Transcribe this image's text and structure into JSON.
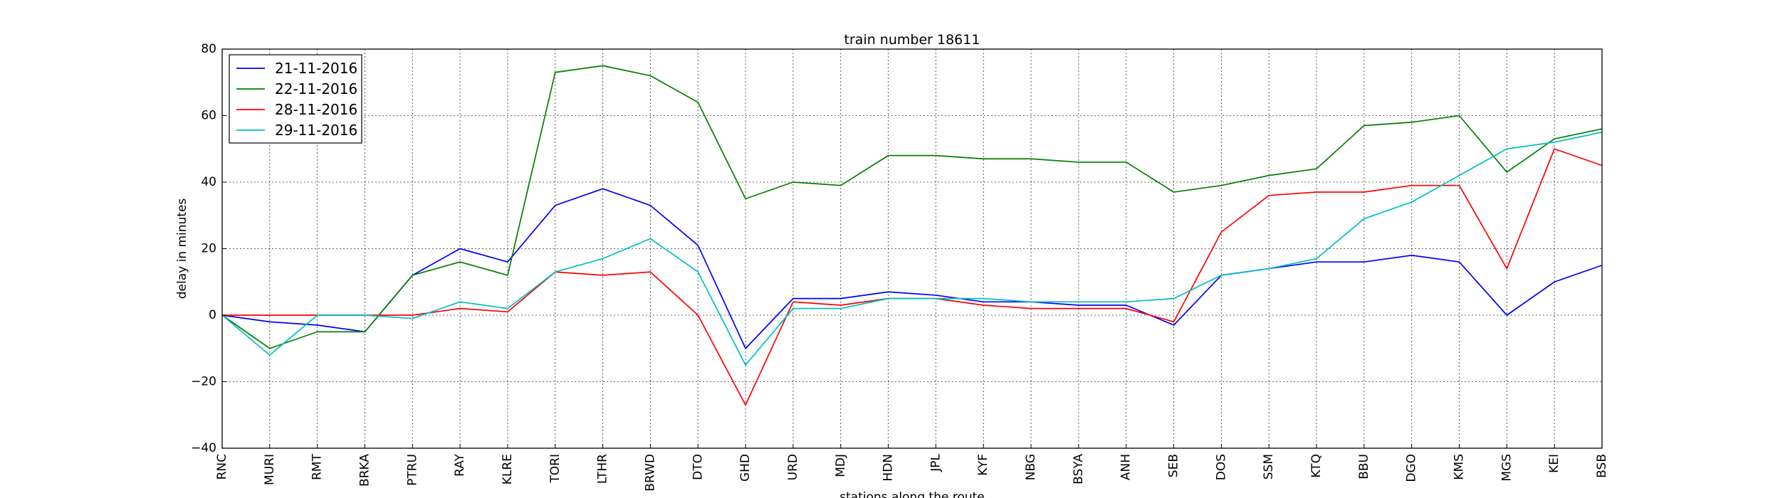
{
  "chart_data": {
    "type": "line",
    "title": "train number 18611",
    "xlabel": "stations along the route",
    "ylabel": "delay in minutes",
    "ylim": [
      -40,
      80
    ],
    "yticks": [
      -40,
      -20,
      0,
      20,
      40,
      60,
      80
    ],
    "grid": true,
    "legend_position": "top-left",
    "categories": [
      "RNC",
      "MURI",
      "RMT",
      "BRKA",
      "PTRU",
      "RAY",
      "KLRE",
      "TORI",
      "LTHR",
      "BRWD",
      "DTO",
      "GHD",
      "URD",
      "MDJ",
      "HDN",
      "JPL",
      "KYF",
      "NBG",
      "BSYA",
      "ANH",
      "SEB",
      "DOS",
      "SSM",
      "KTQ",
      "BBU",
      "DGO",
      "KMS",
      "MGS",
      "KEI",
      "BSB"
    ],
    "series": [
      {
        "name": "21-11-2016",
        "color": "#0000ff",
        "values": [
          0,
          -2,
          -3,
          -5,
          12,
          20,
          16,
          33,
          38,
          33,
          21,
          -10,
          5,
          5,
          7,
          6,
          4,
          4,
          3,
          3,
          -3,
          12,
          14,
          16,
          16,
          18,
          16,
          0,
          10,
          15
        ]
      },
      {
        "name": "22-11-2016",
        "color": "#008000",
        "values": [
          0,
          -10,
          -5,
          -5,
          12,
          16,
          12,
          73,
          75,
          72,
          64,
          35,
          40,
          39,
          48,
          48,
          47,
          47,
          46,
          46,
          37,
          39,
          42,
          44,
          57,
          58,
          60,
          43,
          53,
          56
        ]
      },
      {
        "name": "28-11-2016",
        "color": "#ff0000",
        "values": [
          0,
          0,
          0,
          0,
          0,
          2,
          1,
          13,
          12,
          13,
          0,
          -27,
          4,
          3,
          5,
          5,
          3,
          2,
          2,
          2,
          -2,
          25,
          36,
          37,
          37,
          39,
          39,
          14,
          50,
          45
        ]
      },
      {
        "name": "29-11-2016",
        "color": "#00bfbf",
        "values": [
          0,
          -12,
          0,
          0,
          -1,
          4,
          2,
          13,
          17,
          23,
          13,
          -15,
          2,
          2,
          5,
          5,
          5,
          4,
          4,
          4,
          5,
          12,
          14,
          17,
          29,
          34,
          42,
          50,
          52,
          55
        ]
      }
    ]
  }
}
